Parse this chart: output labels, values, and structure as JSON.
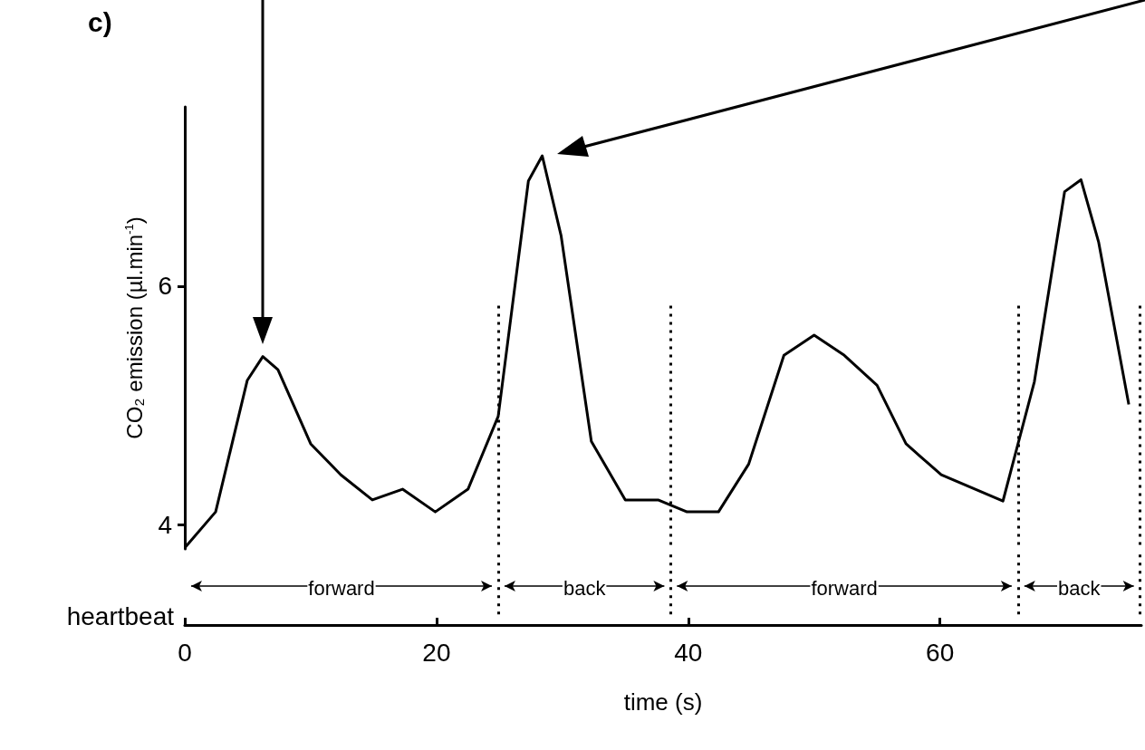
{
  "chart_data": {
    "type": "line",
    "title": "c)",
    "xlabel": "time (s)",
    "ylabel": "CO₂ emission (µl.min$^{-1}$)",
    "x": [
      0,
      2.45,
      4.96,
      6.2,
      7.4,
      10.0,
      12.4,
      14.9,
      17.3,
      19.9,
      22.5,
      24.9,
      27.3,
      28.4,
      29.9,
      32.3,
      35.0,
      37.6,
      39.9,
      42.4,
      44.8,
      47.6,
      50.0,
      52.4,
      55.0,
      57.3,
      60.1,
      65.0,
      67.5,
      69.9,
      71.2,
      72.6,
      75.0
    ],
    "series": [
      {
        "color": "#000000",
        "values": [
          3.81,
          4.11,
          5.21,
          5.41,
          5.3,
          4.68,
          4.42,
          4.21,
          4.3,
          4.11,
          4.3,
          4.91,
          6.88,
          7.09,
          6.42,
          4.7,
          4.21,
          4.21,
          4.11,
          4.11,
          4.51,
          5.42,
          5.59,
          5.42,
          5.17,
          4.68,
          4.42,
          4.2,
          5.2,
          6.79,
          6.89,
          6.37,
          5.01
        ]
      }
    ],
    "xlim": [
      0,
      76
    ],
    "ylim": [
      3.8,
      7.5
    ],
    "xticks": [
      0,
      20,
      40,
      60
    ],
    "yticks": [
      4,
      6
    ],
    "ref_lines": [
      {
        "axis": "x",
        "value": 24.9,
        "label": null,
        "line_style": "dotted",
        "color": "#000000"
      },
      {
        "axis": "x",
        "value": 38.6,
        "label": null,
        "line_style": "dotted",
        "color": "#000000"
      },
      {
        "axis": "x",
        "value": 66.2,
        "label": null,
        "line_style": "dotted",
        "color": "#000000"
      },
      {
        "axis": "x",
        "value": 75.9,
        "label": null,
        "line_style": "dotted",
        "color": "#000000"
      }
    ],
    "annotations": [
      "heartbeat",
      "forward",
      "back",
      "forward",
      "back"
    ],
    "grid": false,
    "marker": "none",
    "line_style": "solid"
  }
}
